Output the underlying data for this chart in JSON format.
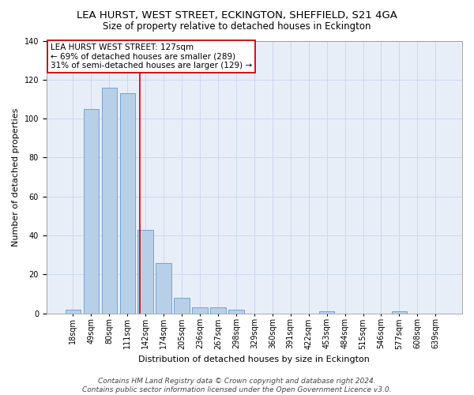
{
  "title": "LEA HURST, WEST STREET, ECKINGTON, SHEFFIELD, S21 4GA",
  "subtitle": "Size of property relative to detached houses in Eckington",
  "xlabel": "Distribution of detached houses by size in Eckington",
  "ylabel": "Number of detached properties",
  "bar_values": [
    2,
    105,
    116,
    113,
    43,
    26,
    8,
    3,
    3,
    2,
    0,
    0,
    0,
    0,
    1,
    0,
    0,
    0,
    1,
    0,
    0
  ],
  "bar_labels": [
    "18sqm",
    "49sqm",
    "80sqm",
    "111sqm",
    "142sqm",
    "174sqm",
    "205sqm",
    "236sqm",
    "267sqm",
    "298sqm",
    "329sqm",
    "360sqm",
    "391sqm",
    "422sqm",
    "453sqm",
    "484sqm",
    "515sqm",
    "546sqm",
    "577sqm",
    "608sqm",
    "639sqm"
  ],
  "bar_color": "#b8cfe8",
  "bar_edge_color": "#6699cc",
  "vline_x": 3.67,
  "vline_color": "#cc0000",
  "annotation_text": "LEA HURST WEST STREET: 127sqm\n← 69% of detached houses are smaller (289)\n31% of semi-detached houses are larger (129) →",
  "annotation_box_color": "#ffffff",
  "annotation_box_edge": "#cc0000",
  "ylim": [
    0,
    140
  ],
  "yticks": [
    0,
    20,
    40,
    60,
    80,
    100,
    120,
    140
  ],
  "grid_color": "#ccd8ee",
  "background_color": "#e8eef8",
  "footer": "Contains HM Land Registry data © Crown copyright and database right 2024.\nContains public sector information licensed under the Open Government Licence v3.0.",
  "title_fontsize": 9.5,
  "subtitle_fontsize": 8.5,
  "xlabel_fontsize": 8,
  "ylabel_fontsize": 8,
  "tick_fontsize": 7,
  "footer_fontsize": 6.5,
  "annotation_fontsize": 7.5
}
